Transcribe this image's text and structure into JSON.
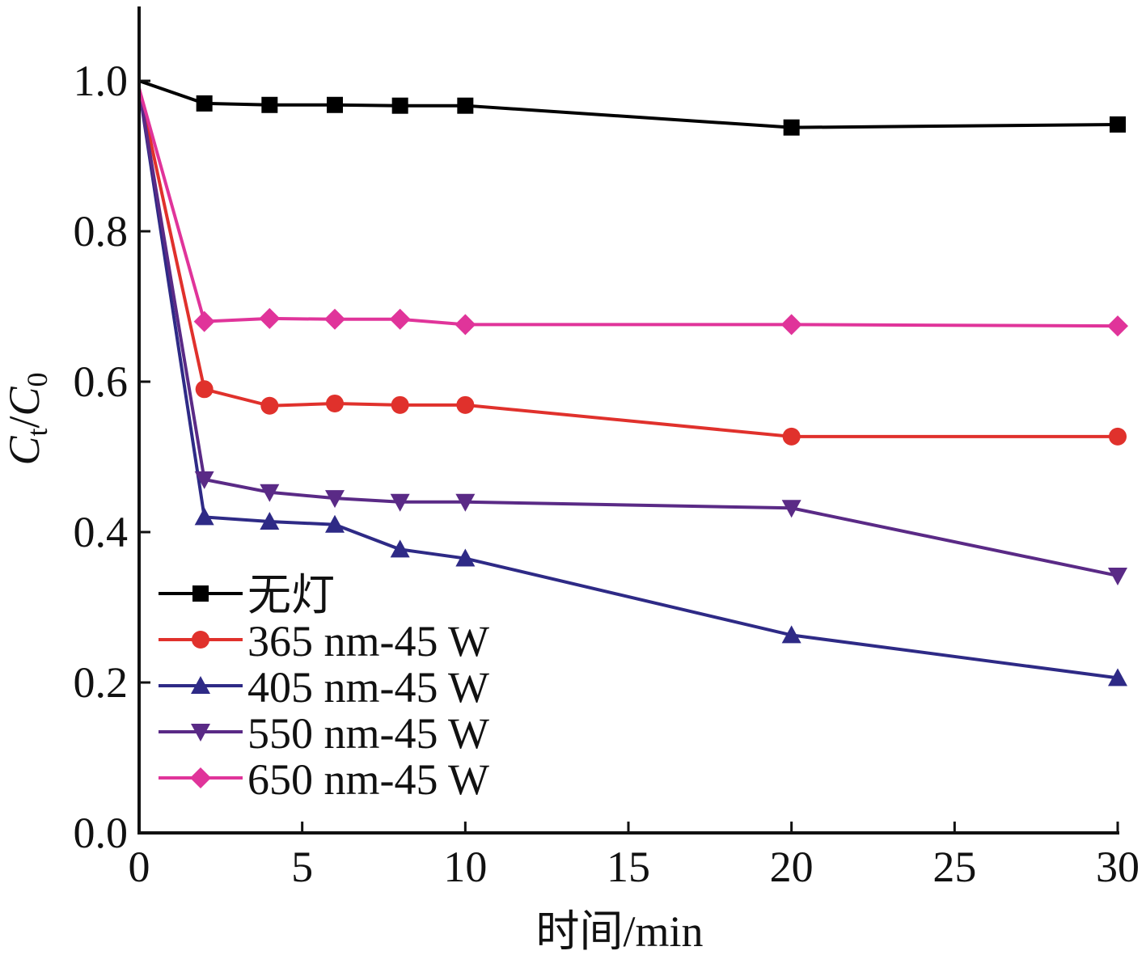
{
  "chart_data": {
    "type": "line",
    "xlabel": "时间/min",
    "ylabel_main_1": "C",
    "ylabel_sub_1": "t",
    "ylabel_slash": "/",
    "ylabel_main_2": "C",
    "ylabel_sub_2": "0",
    "xlim": [
      0,
      30
    ],
    "ylim": [
      0,
      1.1
    ],
    "xticks": [
      0,
      5,
      10,
      15,
      20,
      25,
      30
    ],
    "xtick_labels": [
      "0",
      "5",
      "10",
      "15",
      "20",
      "25",
      "30"
    ],
    "yticks": [
      0,
      0.2,
      0.4,
      0.6,
      0.8,
      1.0
    ],
    "ytick_labels": [
      "0.0",
      "0.2",
      "0.4",
      "0.6",
      "0.8",
      "1.0"
    ],
    "grid": false,
    "legend_position": "bottom-left",
    "x": [
      0,
      2,
      4,
      6,
      8,
      10,
      20,
      30
    ],
    "series": [
      {
        "name": "无灯",
        "color": "#000000",
        "marker": "square",
        "values": [
          1.0,
          0.97,
          0.968,
          0.968,
          0.967,
          0.967,
          0.938,
          0.942
        ]
      },
      {
        "name": "365 nm-45 W",
        "color": "#e0312c",
        "marker": "circle",
        "values": [
          0.99,
          0.59,
          0.568,
          0.571,
          0.569,
          0.569,
          0.527,
          0.527
        ]
      },
      {
        "name": "405 nm-45 W",
        "color": "#2e2a86",
        "marker": "triangle-up",
        "values": [
          0.99,
          0.42,
          0.414,
          0.41,
          0.377,
          0.365,
          0.263,
          0.206
        ]
      },
      {
        "name": "550 nm-45 W",
        "color": "#5a2a86",
        "marker": "triangle-down",
        "values": [
          0.99,
          0.47,
          0.453,
          0.445,
          0.44,
          0.44,
          0.432,
          0.342
        ]
      },
      {
        "name": "650 nm-45 W",
        "color": "#e0349a",
        "marker": "diamond",
        "values": [
          0.99,
          0.68,
          0.684,
          0.683,
          0.683,
          0.676,
          0.676,
          0.674
        ]
      }
    ]
  }
}
